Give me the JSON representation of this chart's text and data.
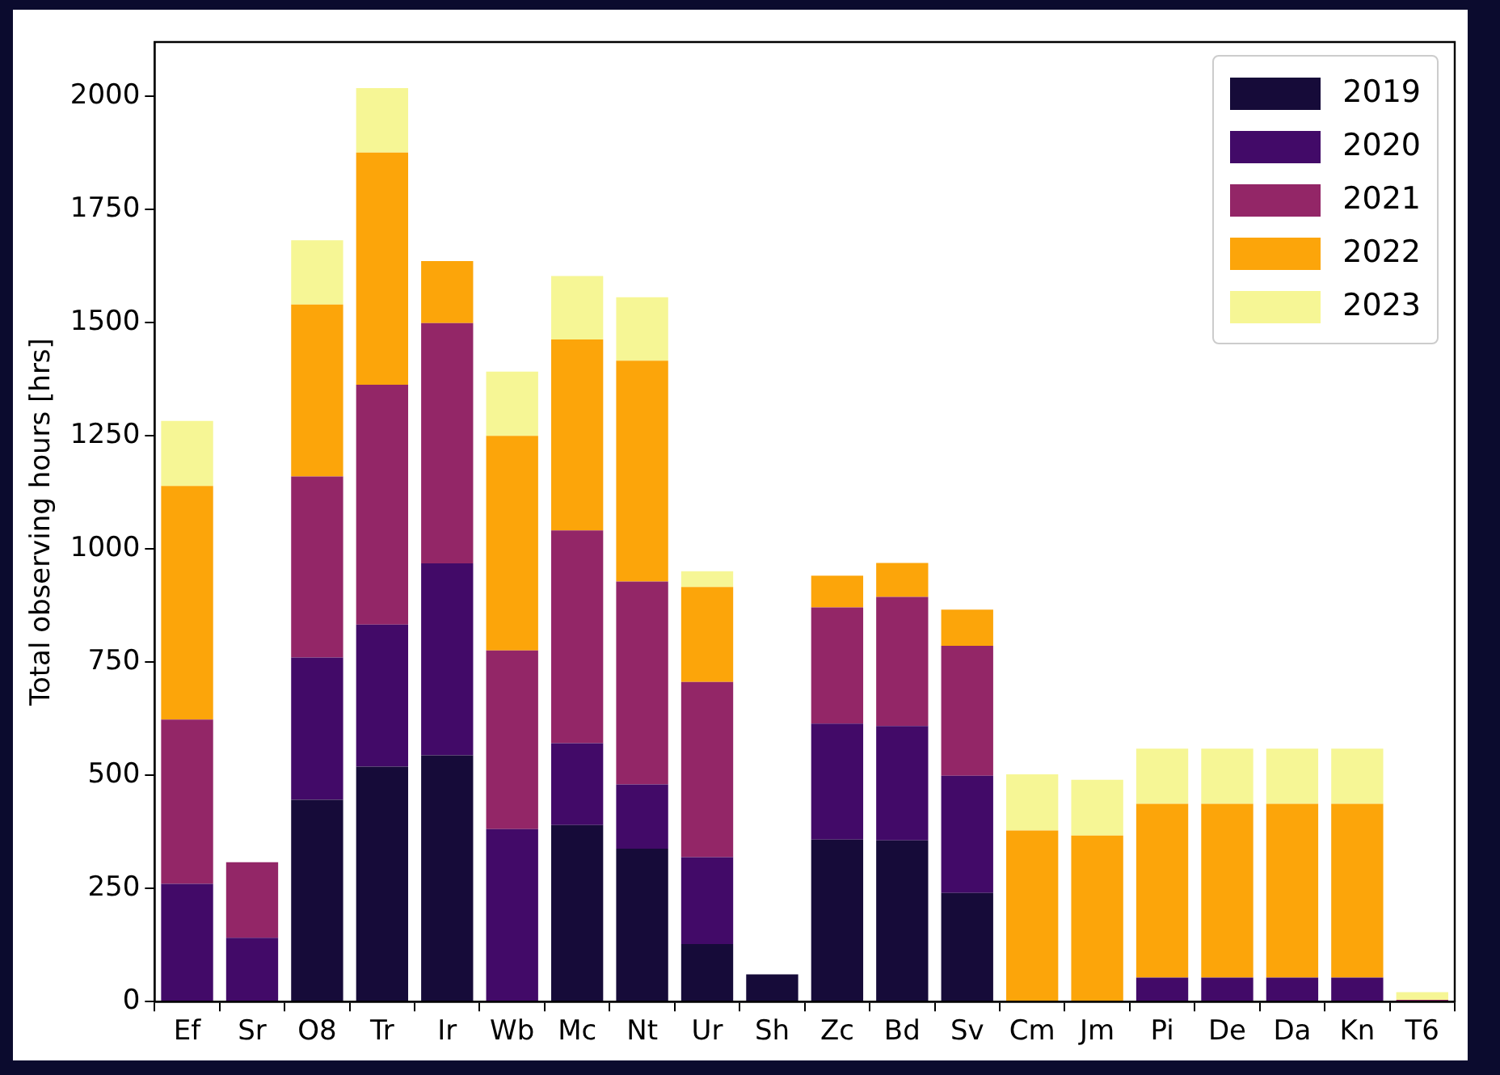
{
  "chart_data": {
    "type": "bar",
    "stacked": true,
    "ylabel": "Total observing hours [hrs]",
    "categories": [
      "Ef",
      "Sr",
      "O8",
      "Tr",
      "Ir",
      "Wb",
      "Mc",
      "Nt",
      "Ur",
      "Sh",
      "Zc",
      "Bd",
      "Sv",
      "Cm",
      "Jm",
      "Pi",
      "De",
      "Da",
      "Kn",
      "T6"
    ],
    "series": [
      {
        "name": "2019",
        "color": "#160b39",
        "values": [
          0,
          0,
          446,
          519,
          544,
          0,
          390,
          338,
          127,
          60,
          358,
          356,
          240,
          null,
          0,
          0,
          0,
          0,
          0,
          0
        ]
      },
      {
        "name": "2020",
        "color": "#420a68",
        "values": [
          260,
          141,
          314,
          314,
          424,
          381,
          181,
          142,
          192,
          0,
          256,
          253,
          259,
          0,
          0,
          53,
          53,
          53,
          53,
          0
        ]
      },
      {
        "name": "2021",
        "color": "#932667",
        "values": [
          363,
          167,
          400,
          530,
          531,
          395,
          470,
          448,
          387,
          0,
          257,
          285,
          287,
          0,
          0,
          0,
          0,
          0,
          0,
          4
        ]
      },
      {
        "name": "2022",
        "color": "#fca50a",
        "values": [
          516,
          0,
          380,
          513,
          137,
          474,
          422,
          488,
          210,
          0,
          70,
          75,
          80,
          378,
          367,
          384,
          384,
          384,
          384,
          0
        ]
      },
      {
        "name": "2023",
        "color": "#f6f695",
        "values": [
          144,
          0,
          142,
          142,
          0,
          142,
          140,
          140,
          35,
          0,
          0,
          0,
          0,
          124,
          123,
          122,
          122,
          122,
          122,
          17
        ]
      }
    ],
    "ylim": [
      0,
      2120
    ],
    "yticks": [
      0,
      250,
      500,
      750,
      1000,
      1250,
      1500,
      1750,
      2000
    ],
    "grid": false,
    "legend": "top right"
  }
}
